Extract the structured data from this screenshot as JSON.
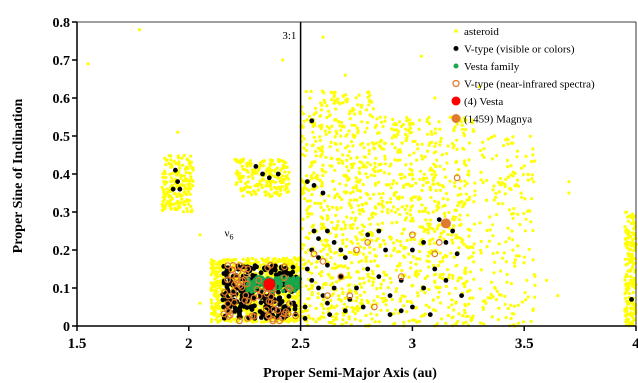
{
  "chart_data": {
    "type": "scatter",
    "xlabel": "Proper Semi-Major Axis (au)",
    "ylabel": "Proper Sine of Inclination",
    "xlim": [
      1.5,
      4.0
    ],
    "ylim": [
      0,
      0.8
    ],
    "xticks": [
      {
        "value": 1.5,
        "label": "1.5"
      },
      {
        "value": 2.0,
        "label": "2"
      },
      {
        "value": 2.5,
        "label": "2.5"
      },
      {
        "value": 3.0,
        "label": "3"
      },
      {
        "value": 3.5,
        "label": "3.5"
      },
      {
        "value": 4.0,
        "label": "4"
      }
    ],
    "yticks": [
      {
        "value": 0,
        "label": "0"
      },
      {
        "value": 0.1,
        "label": "0.1"
      },
      {
        "value": 0.2,
        "label": "0.2"
      },
      {
        "value": 0.3,
        "label": "0.3"
      },
      {
        "value": 0.4,
        "label": "0.4"
      },
      {
        "value": 0.5,
        "label": "0.5"
      },
      {
        "value": 0.6,
        "label": "0.6"
      },
      {
        "value": 0.7,
        "label": "0.7"
      },
      {
        "value": 0.8,
        "label": "0.8"
      }
    ],
    "grid": false,
    "legend_position": "top-right",
    "annotations": [
      {
        "text": "3:1",
        "x": 2.45,
        "y": 0.755,
        "kind": "resonance-label"
      },
      {
        "text": "ν",
        "subscript": "6",
        "x": 2.18,
        "y": 0.235,
        "kind": "resonance-label"
      }
    ],
    "vertical_lines": [
      {
        "x": 2.5,
        "color": "#000000",
        "label": "3:1"
      }
    ],
    "series": [
      {
        "name": "asteroid",
        "marker": "dot",
        "color": "#ffff00",
        "clusters": [
          {
            "a": [
              2.1,
              2.5
            ],
            "sin_i": [
              0.01,
              0.18
            ],
            "density": "very high"
          },
          {
            "a": [
              2.5,
              2.83
            ],
            "sin_i": [
              0.0,
              0.62
            ],
            "density": "high"
          },
          {
            "a": [
              2.83,
              3.28
            ],
            "sin_i": [
              0.0,
              0.55
            ],
            "density": "high"
          },
          {
            "a": [
              3.3,
              3.55
            ],
            "sin_i": [
              0.0,
              0.5
            ],
            "density": "medium"
          },
          {
            "a": [
              1.88,
              2.02
            ],
            "sin_i": [
              0.3,
              0.45
            ],
            "density": "medium"
          },
          {
            "a": [
              2.2,
              2.45
            ],
            "sin_i": [
              0.34,
              0.44
            ],
            "density": "medium"
          },
          {
            "a": [
              3.95,
              4.0
            ],
            "sin_i": [
              0.0,
              0.3
            ],
            "density": "medium"
          }
        ],
        "sample_points": [
          [
            1.78,
            0.78
          ],
          [
            1.55,
            0.69
          ],
          [
            2.42,
            0.7
          ],
          [
            2.6,
            0.76
          ],
          [
            3.04,
            0.71
          ],
          [
            2.7,
            0.66
          ],
          [
            3.3,
            0.63
          ],
          [
            3.7,
            0.38
          ],
          [
            2.05,
            0.24
          ],
          [
            1.95,
            0.51
          ],
          [
            3.6,
            0.12
          ],
          [
            3.65,
            0.08
          ],
          [
            3.7,
            0.35
          ],
          [
            2.05,
            0.06
          ],
          [
            3.1,
            0.6
          ]
        ]
      },
      {
        "name": "V-type (visible or colors)",
        "marker": "dot",
        "color": "#000000",
        "points": [
          [
            1.94,
            0.41
          ],
          [
            1.95,
            0.38
          ],
          [
            1.93,
            0.36
          ],
          [
            1.96,
            0.36
          ],
          [
            2.33,
            0.4
          ],
          [
            2.36,
            0.39
          ],
          [
            2.4,
            0.4
          ],
          [
            2.3,
            0.42
          ],
          [
            2.55,
            0.54
          ],
          [
            2.53,
            0.38
          ],
          [
            2.56,
            0.37
          ],
          [
            2.6,
            0.35
          ],
          [
            2.56,
            0.25
          ],
          [
            2.58,
            0.23
          ],
          [
            2.62,
            0.25
          ],
          [
            2.55,
            0.2
          ],
          [
            2.58,
            0.18
          ],
          [
            2.62,
            0.16
          ],
          [
            2.65,
            0.22
          ],
          [
            2.68,
            0.2
          ],
          [
            2.53,
            0.15
          ],
          [
            2.55,
            0.12
          ],
          [
            2.58,
            0.1
          ],
          [
            2.6,
            0.08
          ],
          [
            2.62,
            0.06
          ],
          [
            2.65,
            0.1
          ],
          [
            2.68,
            0.13
          ],
          [
            2.7,
            0.18
          ],
          [
            2.72,
            0.07
          ],
          [
            2.75,
            0.1
          ],
          [
            2.78,
            0.05
          ],
          [
            2.8,
            0.15
          ],
          [
            2.85,
            0.13
          ],
          [
            2.9,
            0.08
          ],
          [
            2.95,
            0.12
          ],
          [
            3.0,
            0.05
          ],
          [
            3.05,
            0.1
          ],
          [
            3.1,
            0.15
          ],
          [
            3.05,
            0.22
          ],
          [
            3.15,
            0.22
          ],
          [
            3.12,
            0.28
          ],
          [
            3.18,
            0.25
          ],
          [
            3.2,
            0.19
          ],
          [
            3.15,
            0.12
          ],
          [
            3.22,
            0.08
          ],
          [
            2.9,
            0.03
          ],
          [
            2.95,
            0.04
          ],
          [
            3.0,
            0.2
          ],
          [
            2.85,
            0.25
          ],
          [
            2.88,
            0.2
          ],
          [
            3.08,
            0.03
          ],
          [
            3.98,
            0.07
          ],
          [
            2.7,
            0.04
          ],
          [
            2.63,
            0.03
          ],
          [
            2.52,
            0.05
          ],
          [
            2.52,
            0.02
          ],
          [
            2.8,
            0.24
          ]
        ],
        "dense_region": {
          "a": [
            2.15,
            2.48
          ],
          "sin_i": [
            0.02,
            0.16
          ]
        }
      },
      {
        "name": "Vesta family",
        "marker": "dot",
        "color": "#1aa64a",
        "dense_region": {
          "a": [
            2.26,
            2.5
          ],
          "sin_i": [
            0.09,
            0.13
          ]
        }
      },
      {
        "name": "V-type (near-infrared spectra)",
        "marker": "ring",
        "color": "#e07a2e",
        "points": [
          [
            2.56,
            0.19
          ],
          [
            2.6,
            0.17
          ],
          [
            2.68,
            0.13
          ],
          [
            2.75,
            0.2
          ],
          [
            2.72,
            0.08
          ],
          [
            2.8,
            0.22
          ],
          [
            3.0,
            0.24
          ],
          [
            3.15,
            0.27
          ],
          [
            3.12,
            0.22
          ],
          [
            3.2,
            0.39
          ],
          [
            3.1,
            0.19
          ],
          [
            2.95,
            0.13
          ],
          [
            2.83,
            0.05
          ],
          [
            2.62,
            0.08
          ]
        ],
        "dense_region": {
          "a": [
            2.15,
            2.48
          ],
          "sin_i": [
            0.01,
            0.16
          ]
        }
      },
      {
        "name": "(4) Vesta",
        "marker": "big-dot",
        "color": "#ff0000",
        "points": [
          [
            2.36,
            0.11
          ]
        ]
      },
      {
        "name": "(1459) Magnya",
        "marker": "big-dot",
        "color": "#e07a2e",
        "points": [
          [
            3.15,
            0.27
          ]
        ]
      }
    ]
  }
}
